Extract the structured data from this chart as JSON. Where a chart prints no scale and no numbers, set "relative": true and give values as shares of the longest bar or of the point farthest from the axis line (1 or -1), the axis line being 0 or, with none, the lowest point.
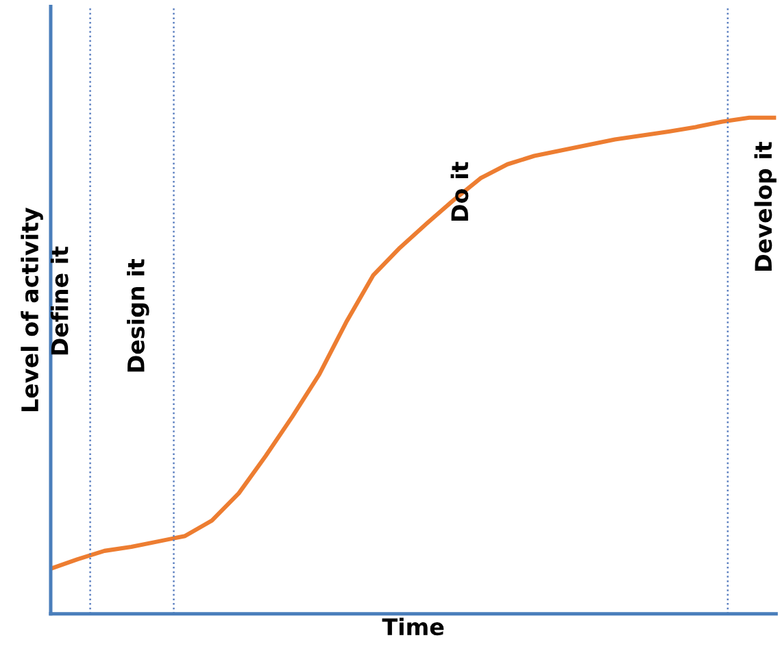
{
  "chart_data": {
    "type": "line",
    "relative": true,
    "xlabel": "Time",
    "ylabel": "Level of activity",
    "categories": [
      null,
      null,
      null,
      null,
      null,
      null,
      null,
      null,
      null,
      null,
      null,
      null,
      null,
      null,
      null,
      null,
      null,
      null,
      null,
      null,
      null,
      null,
      null,
      null,
      null,
      null,
      null,
      null
    ],
    "series": [
      {
        "color": "#ed7d31",
        "values": [
          0.091,
          0.11,
          0.127,
          0.135,
          0.146,
          0.157,
          0.188,
          0.243,
          0.318,
          0.398,
          0.483,
          0.588,
          0.682,
          0.738,
          0.787,
          0.834,
          0.878,
          0.906,
          0.923,
          0.934,
          0.945,
          0.956,
          0.964,
          0.972,
          0.981,
          0.992,
          1,
          1
        ]
      }
    ],
    "annotations": [
      "Define it",
      "Design it",
      "Do it",
      "Develop it"
    ],
    "legend": false,
    "marker": "none",
    "line_style": "solid"
  }
}
